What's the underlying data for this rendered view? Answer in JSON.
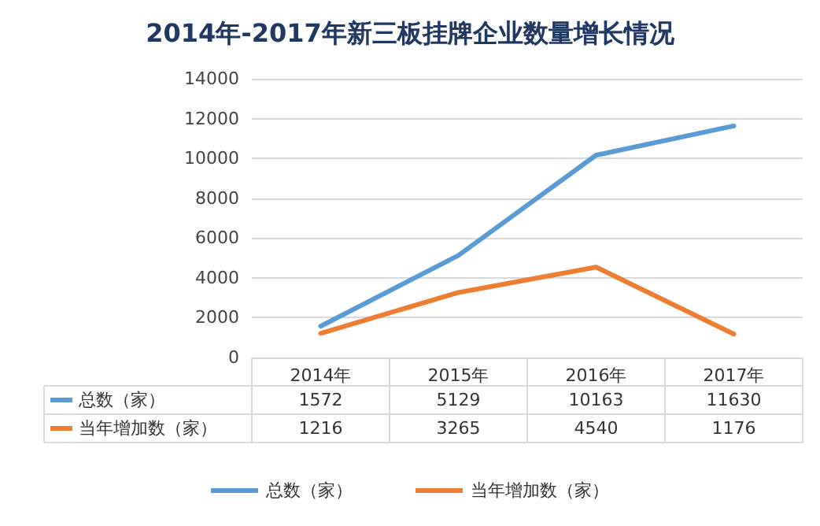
{
  "chart_data": {
    "type": "line",
    "title": "2014年-2017年新三板挂牌企业数量增长情况",
    "categories": [
      "2014年",
      "2015年",
      "2016年",
      "2017年"
    ],
    "series": [
      {
        "name": "总数（家）",
        "color": "#5b9bd5",
        "values": [
          1572,
          5129,
          10163,
          11630
        ]
      },
      {
        "name": "当年增加数（家）",
        "color": "#ed7d31",
        "values": [
          1216,
          3265,
          4540,
          1176
        ]
      }
    ],
    "ylim": [
      0,
      14000
    ],
    "yticks": [
      0,
      2000,
      4000,
      6000,
      8000,
      10000,
      12000,
      14000
    ],
    "grid": "y",
    "legend": "bottom",
    "marker": "none",
    "line_style": "solid",
    "data_labels": true
  }
}
